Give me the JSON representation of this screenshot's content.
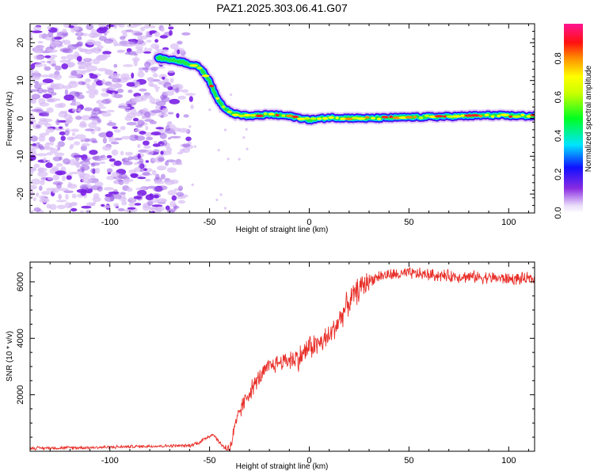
{
  "title": "PAZ1.2025.303.06.41.G07",
  "colors": {
    "snr_line": "#e8302a",
    "speckle": "#9a5ee6",
    "speckle_dark": "#7a1fe6",
    "speckle_light": "#d8bdf5"
  },
  "chart_data": [
    {
      "type": "heatmap",
      "name": "spectrogram",
      "xlabel": "Height of straight line (km)",
      "ylabel": "Frequency (Hz)",
      "xlim": [
        -140,
        113
      ],
      "ylim": [
        -25,
        25
      ],
      "xticks": [
        -100,
        -50,
        0,
        50,
        100
      ],
      "yticks": [
        20,
        10,
        0,
        -10,
        -20
      ],
      "ridge": {
        "description": "dominant frequency track",
        "points": [
          [
            -76,
            16
          ],
          [
            -64,
            15
          ],
          [
            -55,
            13.5
          ],
          [
            -50,
            10
          ],
          [
            -47,
            6
          ],
          [
            -43,
            3
          ],
          [
            -38,
            1.2
          ],
          [
            -30,
            0.6
          ],
          [
            -20,
            1
          ],
          [
            -10,
            0.6
          ],
          [
            0,
            -0.4
          ],
          [
            10,
            0.2
          ],
          [
            30,
            0
          ],
          [
            50,
            0.3
          ],
          [
            70,
            0.5
          ],
          [
            90,
            0.8
          ],
          [
            113,
            0.6
          ]
        ]
      },
      "noise_region_x": [
        -140,
        -62
      ],
      "colorbar": {
        "label": "Normalized spectral amplitude",
        "ticks": [
          "0.0",
          "0.2",
          "0.4",
          "0.6",
          "0.8"
        ],
        "range": [
          0,
          0.98
        ]
      }
    },
    {
      "type": "line",
      "name": "snr",
      "xlabel": "Height of straight line (km)",
      "ylabel": "SNR (10 * v/v)",
      "xlim": [
        -140,
        113
      ],
      "ylim": [
        0,
        6700
      ],
      "xticks": [
        -100,
        -50,
        0,
        50,
        100
      ],
      "yticks": [
        2000,
        4000,
        6000
      ],
      "series": [
        {
          "name": "SNR",
          "x": [
            -140,
            -110,
            -80,
            -60,
            -55,
            -50,
            -48,
            -45,
            -42,
            -40,
            -38,
            -35,
            -30,
            -25,
            -20,
            -15,
            -10,
            -5,
            0,
            5,
            10,
            15,
            20,
            25,
            30,
            35,
            40,
            45,
            50,
            60,
            70,
            80,
            90,
            100,
            113
          ],
          "values": [
            110,
            130,
            180,
            200,
            320,
            550,
            600,
            300,
            100,
            60,
            600,
            1400,
            2100,
            2600,
            3000,
            3150,
            3250,
            3300,
            3700,
            3800,
            4050,
            4650,
            5300,
            5750,
            6050,
            6200,
            6250,
            6250,
            6300,
            6250,
            6200,
            6180,
            6150,
            6100,
            6100
          ]
        }
      ]
    }
  ]
}
